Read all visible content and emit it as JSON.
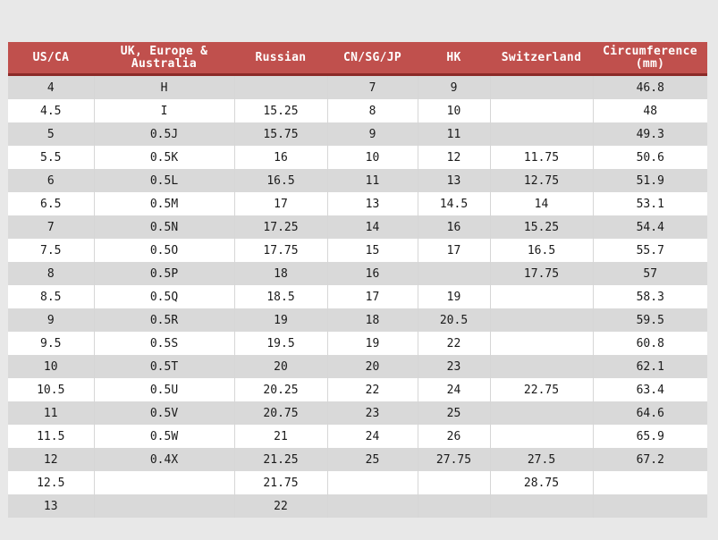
{
  "table": {
    "header_color": "#c0504d",
    "band_color": "#d9d9d9",
    "columns": [
      "US/CA",
      "UK, Europe & Australia",
      "Russian",
      "CN/SG/JP",
      "HK",
      "Switzerland",
      "Circumference (mm)"
    ],
    "rows": [
      [
        "4",
        "H",
        "",
        "7",
        "9",
        "",
        "46.8"
      ],
      [
        "4.5",
        "I",
        "15.25",
        "8",
        "10",
        "",
        "48"
      ],
      [
        "5",
        "0.5J",
        "15.75",
        "9",
        "11",
        "",
        "49.3"
      ],
      [
        "5.5",
        "0.5K",
        "16",
        "10",
        "12",
        "11.75",
        "50.6"
      ],
      [
        "6",
        "0.5L",
        "16.5",
        "11",
        "13",
        "12.75",
        "51.9"
      ],
      [
        "6.5",
        "0.5M",
        "17",
        "13",
        "14.5",
        "14",
        "53.1"
      ],
      [
        "7",
        "0.5N",
        "17.25",
        "14",
        "16",
        "15.25",
        "54.4"
      ],
      [
        "7.5",
        "0.5O",
        "17.75",
        "15",
        "17",
        "16.5",
        "55.7"
      ],
      [
        "8",
        "0.5P",
        "18",
        "16",
        "",
        "17.75",
        "57"
      ],
      [
        "8.5",
        "0.5Q",
        "18.5",
        "17",
        "19",
        "",
        "58.3"
      ],
      [
        "9",
        "0.5R",
        "19",
        "18",
        "20.5",
        "",
        "59.5"
      ],
      [
        "9.5",
        "0.5S",
        "19.5",
        "19",
        "22",
        "",
        "60.8"
      ],
      [
        "10",
        "0.5T",
        "20",
        "20",
        "23",
        "",
        "62.1"
      ],
      [
        "10.5",
        "0.5U",
        "20.25",
        "22",
        "24",
        "22.75",
        "63.4"
      ],
      [
        "11",
        "0.5V",
        "20.75",
        "23",
        "25",
        "",
        "64.6"
      ],
      [
        "11.5",
        "0.5W",
        "21",
        "24",
        "26",
        "",
        "65.9"
      ],
      [
        "12",
        "0.4X",
        "21.25",
        "25",
        "27.75",
        "27.5",
        "67.2"
      ],
      [
        "12.5",
        "",
        "21.75",
        "",
        "",
        "28.75",
        ""
      ],
      [
        "13",
        "",
        "22",
        "",
        "",
        "",
        ""
      ]
    ]
  }
}
